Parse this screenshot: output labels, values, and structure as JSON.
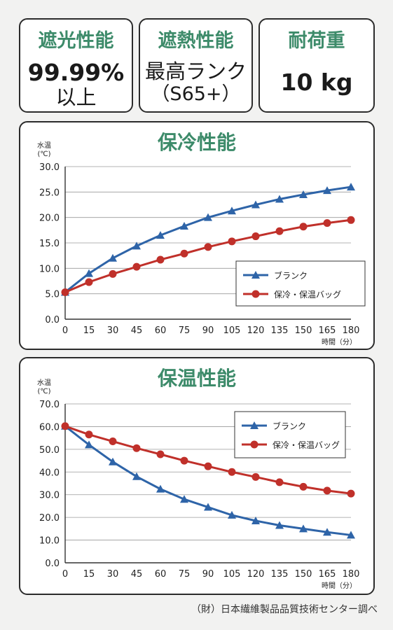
{
  "stats": [
    {
      "title": "遮光性能",
      "line1": "99.99%",
      "line2": "以上"
    },
    {
      "title": "遮熱性能",
      "line1": "最高ランク",
      "line2": "（S65+）"
    },
    {
      "title": "耐荷重",
      "line1": "10 kg",
      "line2": ""
    }
  ],
  "footer": "（財）日本繊維製品品質技術センター調べ",
  "colors": {
    "blank": "#2e64a8",
    "bag": "#c0302a",
    "title": "#3d8b6a"
  },
  "chart_data": [
    {
      "type": "line",
      "title": "保冷性能",
      "ylabel": "水温 (℃)",
      "xlabel": "時間（分）",
      "x": [
        0,
        15,
        30,
        45,
        60,
        75,
        90,
        105,
        120,
        135,
        150,
        165,
        180
      ],
      "ylim": [
        0,
        30
      ],
      "yticks": [
        "0.0",
        "5.0",
        "10.0",
        "15.0",
        "20.0",
        "25.0",
        "30.0"
      ],
      "grid": true,
      "legend": "bottom-right",
      "series": [
        {
          "name": "ブランク",
          "marker": "triangle",
          "values": [
            5.3,
            9.0,
            12.0,
            14.4,
            16.5,
            18.3,
            20.0,
            21.3,
            22.5,
            23.6,
            24.5,
            25.3,
            26.0
          ]
        },
        {
          "name": "保冷・保温バッグ",
          "marker": "circle",
          "values": [
            5.3,
            7.3,
            8.9,
            10.3,
            11.7,
            12.9,
            14.2,
            15.3,
            16.3,
            17.3,
            18.2,
            18.9,
            19.5
          ]
        }
      ]
    },
    {
      "type": "line",
      "title": "保温性能",
      "ylabel": "水温 (℃)",
      "xlabel": "時間（分）",
      "x": [
        0,
        15,
        30,
        45,
        60,
        75,
        90,
        105,
        120,
        135,
        150,
        165,
        180
      ],
      "ylim": [
        0,
        70
      ],
      "yticks": [
        "0.0",
        "10.0",
        "20.0",
        "30.0",
        "40.0",
        "50.0",
        "60.0",
        "70.0"
      ],
      "grid": true,
      "legend": "top-right",
      "series": [
        {
          "name": "ブランク",
          "marker": "triangle",
          "values": [
            60.2,
            52.0,
            44.5,
            38.0,
            32.5,
            28.0,
            24.5,
            21.0,
            18.5,
            16.5,
            15.0,
            13.5,
            12.2
          ]
        },
        {
          "name": "保冷・保温バッグ",
          "marker": "circle",
          "values": [
            60.2,
            56.5,
            53.5,
            50.5,
            47.8,
            45.0,
            42.5,
            40.0,
            37.8,
            35.5,
            33.5,
            31.8,
            30.5
          ]
        }
      ]
    }
  ]
}
